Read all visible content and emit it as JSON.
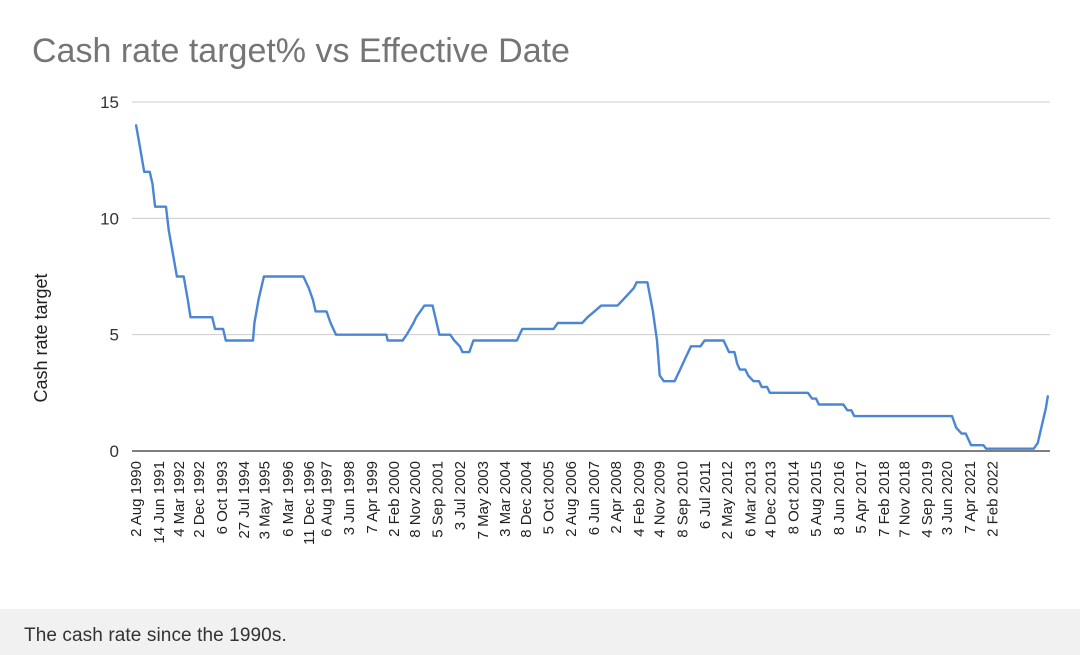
{
  "chart_data": {
    "type": "line",
    "title": "Cash rate target%  vs Effective Date",
    "xlabel": "",
    "ylabel": "Cash rate target",
    "ylim": [
      0,
      15
    ],
    "y_ticks": [
      0,
      5,
      10,
      15
    ],
    "grid": true,
    "series": [
      {
        "name": "Cash rate target",
        "color": "#4a86d4",
        "values": [
          [
            1990.6,
            14
          ],
          [
            1990.75,
            13
          ],
          [
            1990.9,
            12
          ],
          [
            1991.1,
            12
          ],
          [
            1991.2,
            11.5
          ],
          [
            1991.3,
            10.5
          ],
          [
            1991.7,
            10.5
          ],
          [
            1991.8,
            9.5
          ],
          [
            1991.95,
            8.5
          ],
          [
            1992.1,
            7.5
          ],
          [
            1992.35,
            7.5
          ],
          [
            1992.5,
            6.5
          ],
          [
            1992.6,
            5.75
          ],
          [
            1993.4,
            5.75
          ],
          [
            1993.5,
            5.25
          ],
          [
            1993.8,
            5.25
          ],
          [
            1993.9,
            4.75
          ],
          [
            1994.55,
            4.75
          ],
          [
            1994.9,
            4.75
          ],
          [
            1994.95,
            5.5
          ],
          [
            1995.1,
            6.5
          ],
          [
            1995.3,
            7.5
          ],
          [
            1996.75,
            7.5
          ],
          [
            1996.95,
            7.0
          ],
          [
            1997.1,
            6.5
          ],
          [
            1997.2,
            6.0
          ],
          [
            1997.6,
            6.0
          ],
          [
            1997.75,
            5.5
          ],
          [
            1997.95,
            5.0
          ],
          [
            1999.8,
            5.0
          ],
          [
            1999.85,
            4.75
          ],
          [
            2000.4,
            4.75
          ],
          [
            2000.55,
            5.0
          ],
          [
            2000.8,
            5.5
          ],
          [
            2000.9,
            5.75
          ],
          [
            2001.05,
            6.0
          ],
          [
            2001.2,
            6.25
          ],
          [
            2001.5,
            6.25
          ],
          [
            2001.75,
            5.0
          ],
          [
            2002.15,
            5.0
          ],
          [
            2002.3,
            4.75
          ],
          [
            2002.5,
            4.5
          ],
          [
            2002.6,
            4.25
          ],
          [
            2002.85,
            4.25
          ],
          [
            2003.0,
            4.75
          ],
          [
            2004.6,
            4.75
          ],
          [
            2004.8,
            5.25
          ],
          [
            2005.95,
            5.25
          ],
          [
            2006.1,
            5.5
          ],
          [
            2007.0,
            5.5
          ],
          [
            2007.2,
            5.75
          ],
          [
            2007.45,
            6.0
          ],
          [
            2007.7,
            6.25
          ],
          [
            2008.3,
            6.25
          ],
          [
            2008.5,
            6.5
          ],
          [
            2008.7,
            6.75
          ],
          [
            2008.9,
            7.0
          ],
          [
            2009.0,
            7.25
          ],
          [
            2009.4,
            7.25
          ],
          [
            2009.6,
            6.0
          ],
          [
            2009.75,
            4.75
          ],
          [
            2009.85,
            3.25
          ],
          [
            2010.0,
            3.0
          ],
          [
            2010.4,
            3.0
          ],
          [
            2010.6,
            3.5
          ],
          [
            2010.8,
            4.0
          ],
          [
            2011.0,
            4.5
          ],
          [
            2011.35,
            4.5
          ],
          [
            2011.5,
            4.75
          ],
          [
            2012.2,
            4.75
          ],
          [
            2012.4,
            4.25
          ],
          [
            2012.6,
            4.25
          ],
          [
            2012.7,
            3.75
          ],
          [
            2012.8,
            3.5
          ],
          [
            2013.0,
            3.5
          ],
          [
            2013.1,
            3.25
          ],
          [
            2013.3,
            3.0
          ],
          [
            2013.5,
            3.0
          ],
          [
            2013.6,
            2.75
          ],
          [
            2013.8,
            2.75
          ],
          [
            2013.9,
            2.5
          ],
          [
            2015.3,
            2.5
          ],
          [
            2015.45,
            2.25
          ],
          [
            2015.6,
            2.25
          ],
          [
            2015.7,
            2.0
          ],
          [
            2016.6,
            2.0
          ],
          [
            2016.75,
            1.75
          ],
          [
            2016.9,
            1.75
          ],
          [
            2017.0,
            1.5
          ],
          [
            2020.6,
            1.5
          ],
          [
            2020.75,
            1.0
          ],
          [
            2020.95,
            0.75
          ],
          [
            2021.1,
            0.75
          ],
          [
            2021.2,
            0.5
          ],
          [
            2021.3,
            0.25
          ],
          [
            2021.75,
            0.25
          ],
          [
            2021.85,
            0.1
          ],
          [
            2023.6,
            0.1
          ],
          [
            2023.75,
            0.35
          ],
          [
            2023.85,
            0.85
          ],
          [
            2023.95,
            1.35
          ],
          [
            2024.05,
            1.85
          ],
          [
            2024.12,
            2.35
          ]
        ]
      }
    ],
    "x_ticks": [
      {
        "label": "2 Aug 1990",
        "x": 1990.6
      },
      {
        "label": "14 Jun 1991",
        "x": 1991.45
      },
      {
        "label": "4 Mar 1992",
        "x": 1992.17
      },
      {
        "label": "2 Dec 1992",
        "x": 1992.92
      },
      {
        "label": "6 Oct 1993",
        "x": 1993.76
      },
      {
        "label": "27 Jul 1994",
        "x": 1994.57
      },
      {
        "label": "3 May 1995",
        "x": 1995.33
      },
      {
        "label": "6 Mar 1996",
        "x": 1996.18
      },
      {
        "label": "11 Dec 1996",
        "x": 1996.95
      },
      {
        "label": "6 Aug 1997",
        "x": 1997.6
      },
      {
        "label": "3 Jun 1998",
        "x": 1998.42
      },
      {
        "label": "7 Apr 1999",
        "x": 1999.27
      },
      {
        "label": "2 Feb 2000",
        "x": 2000.09
      },
      {
        "label": "8 Nov 2000",
        "x": 2000.85
      },
      {
        "label": "5 Sep 2001",
        "x": 2001.68
      },
      {
        "label": "3 Jul 2002",
        "x": 2002.5
      },
      {
        "label": "7 May 2003",
        "x": 2003.35
      },
      {
        "label": "3 Mar 2004",
        "x": 2004.17
      },
      {
        "label": "8 Dec 2004",
        "x": 2004.93
      },
      {
        "label": "5 Oct 2005",
        "x": 2005.76
      },
      {
        "label": "2 Aug 2006",
        "x": 2006.59
      },
      {
        "label": "6 Jun 2007",
        "x": 2007.43
      },
      {
        "label": "2 Apr 2008",
        "x": 2008.25
      },
      {
        "label": "4 Feb 2009",
        "x": 2009.09
      },
      {
        "label": "4 Nov 2009",
        "x": 2009.84
      },
      {
        "label": "8 Sep 2010",
        "x": 2010.68
      },
      {
        "label": "6 Jul 2011",
        "x": 2011.51
      },
      {
        "label": "2 May 2012",
        "x": 2012.33
      },
      {
        "label": "6 Mar 2013",
        "x": 2013.18
      },
      {
        "label": "4 Dec 2013",
        "x": 2013.92
      },
      {
        "label": "8 Oct 2014",
        "x": 2014.77
      },
      {
        "label": "5 Aug 2015",
        "x": 2015.59
      },
      {
        "label": "8 Jun 2016",
        "x": 2016.44
      },
      {
        "label": "5 Apr 2017",
        "x": 2017.26
      },
      {
        "label": "7 Feb 2018",
        "x": 2018.1
      },
      {
        "label": "7 Nov 2018",
        "x": 2018.85
      },
      {
        "label": "4 Sep 2019",
        "x": 2019.67
      },
      {
        "label": "3 Jun 2020",
        "x": 2020.42
      },
      {
        "label": "7 Apr 2021",
        "x": 2021.26
      },
      {
        "label": "2 Feb 2022",
        "x": 2022.09
      }
    ]
  },
  "caption": "The cash rate since the 1990s."
}
